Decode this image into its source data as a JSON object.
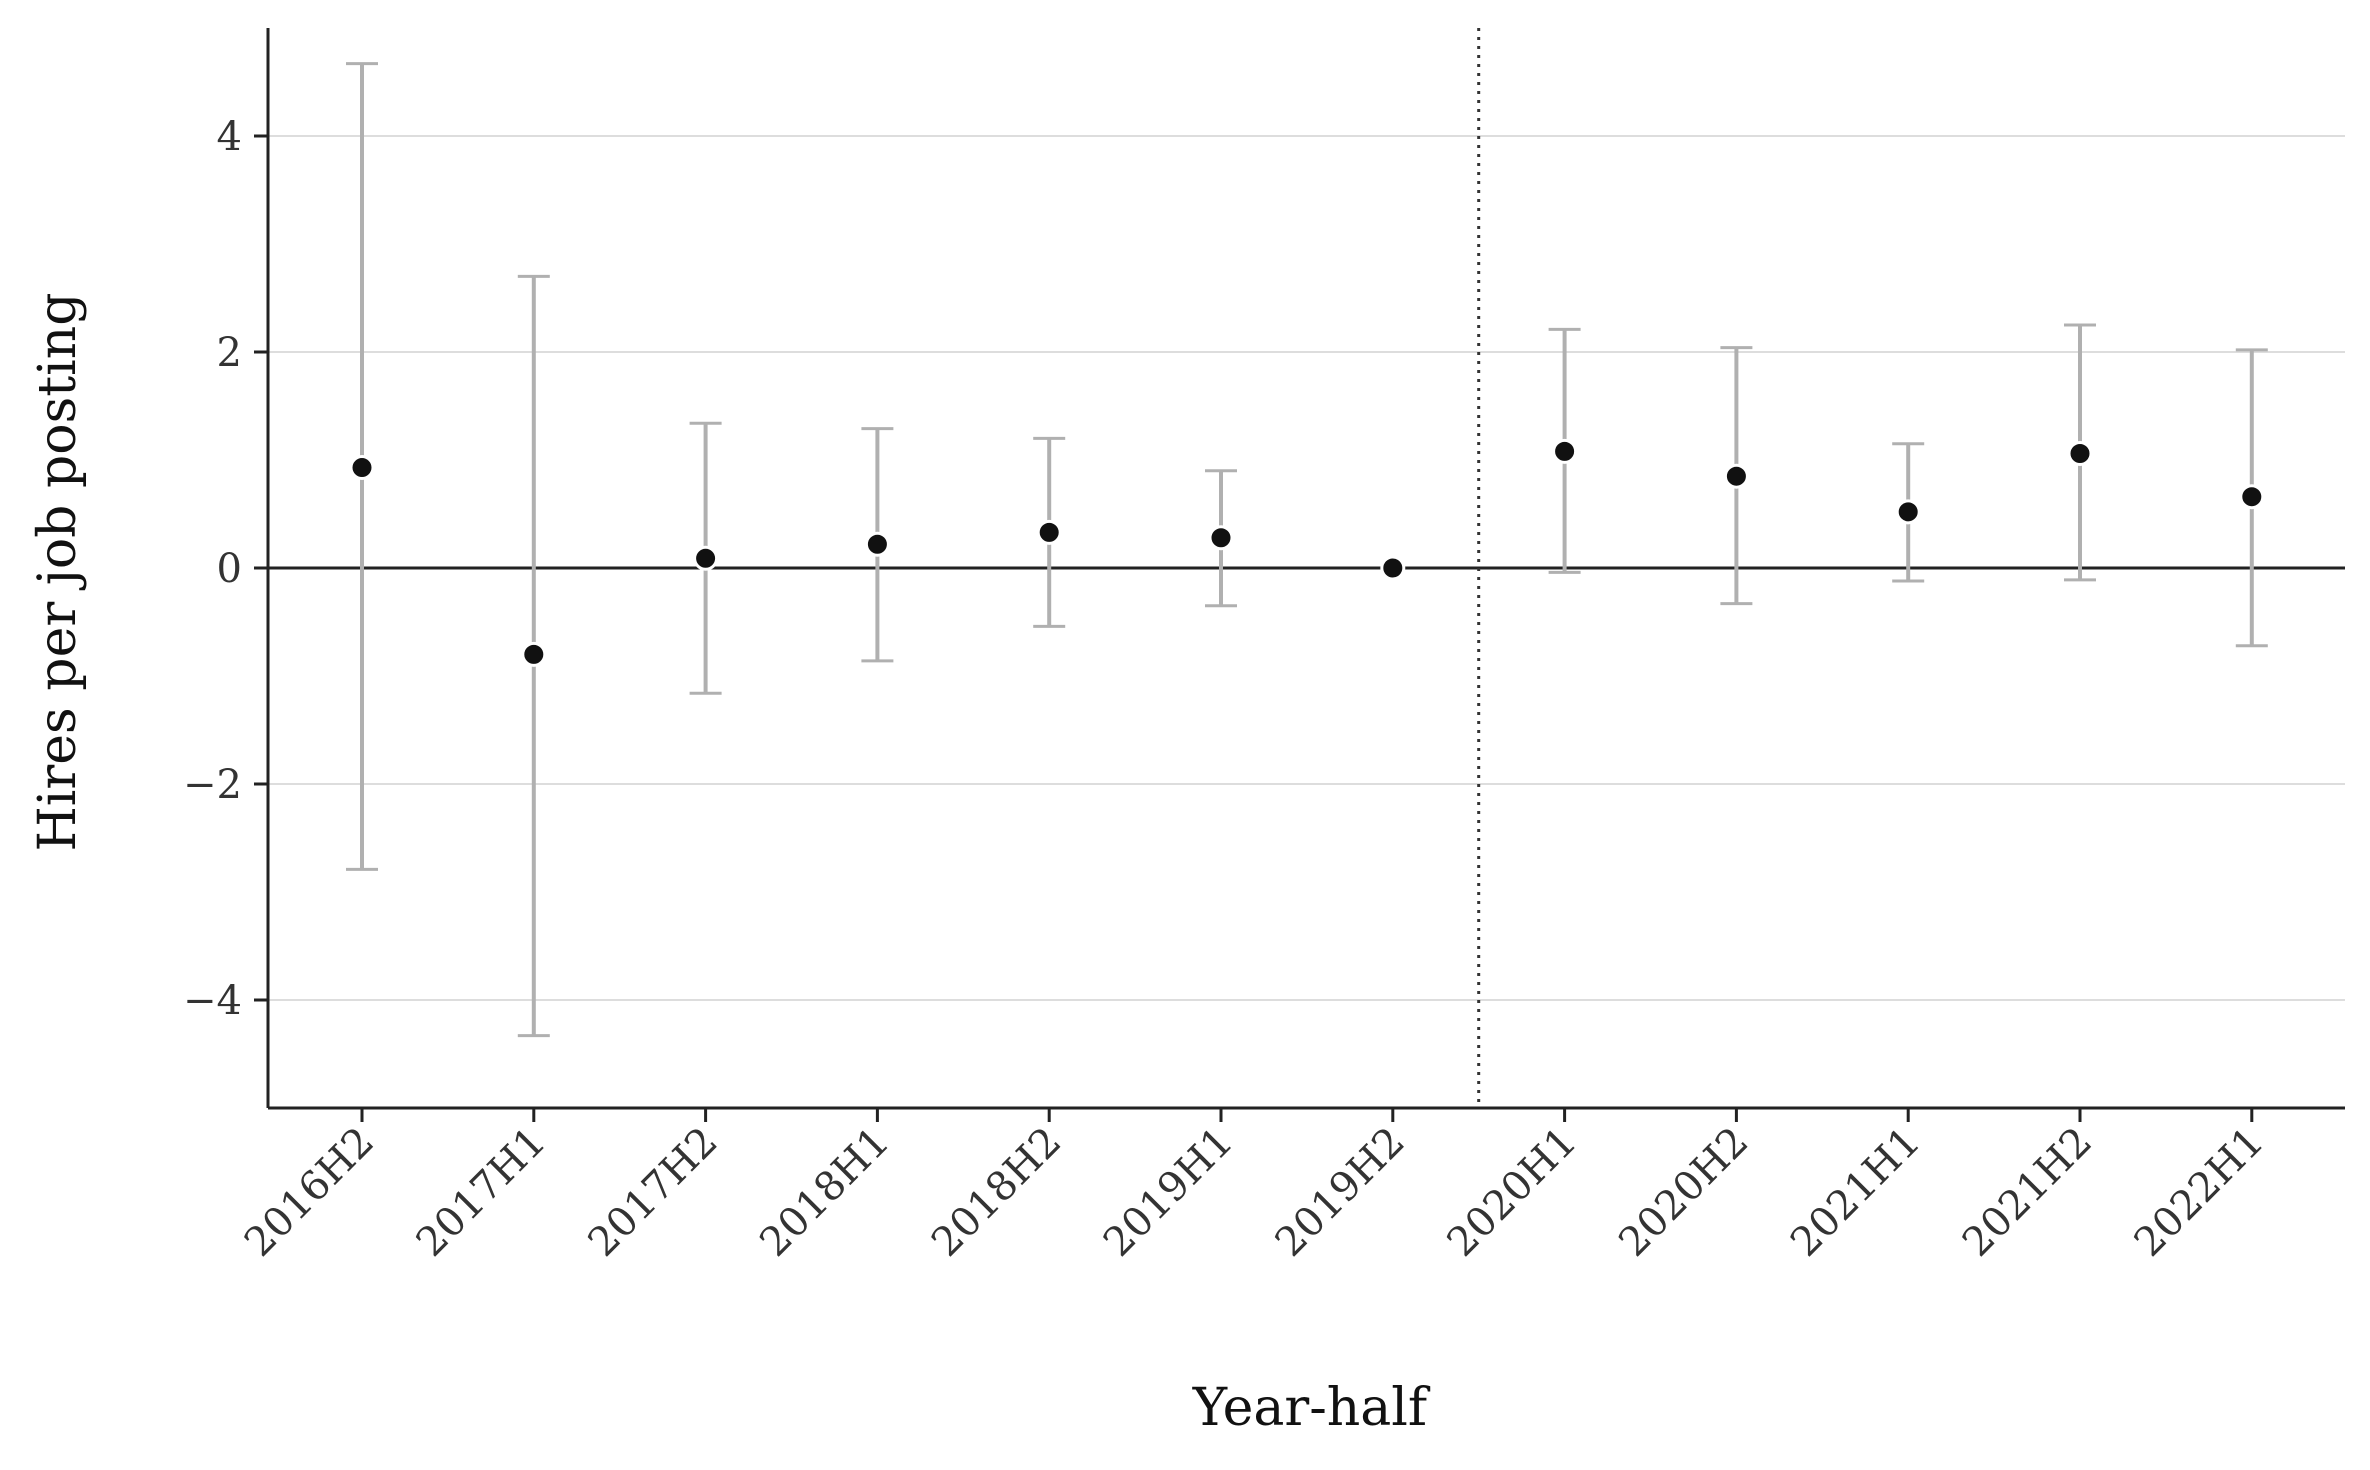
{
  "chart_data": {
    "type": "scatter",
    "subtype": "coefficient plot with confidence intervals",
    "title": "",
    "xlabel": "Year-half",
    "ylabel": "Hires per job posting",
    "categories": [
      "2016H2",
      "2017H1",
      "2017H2",
      "2018H1",
      "2018H2",
      "2019H1",
      "2019H2",
      "2020H1",
      "2020H2",
      "2021H1",
      "2021H2",
      "2022H1"
    ],
    "series": [
      {
        "values": [
          0.93,
          -0.8,
          0.09,
          0.22,
          0.33,
          0.28,
          0.0,
          1.08,
          0.85,
          0.52,
          1.06,
          0.66
        ],
        "ci_lower": [
          -2.79,
          -4.33,
          -1.16,
          -0.86,
          -0.54,
          -0.35,
          0.0,
          -0.04,
          -0.33,
          -0.12,
          -0.11,
          -0.72
        ],
        "ci_upper": [
          4.67,
          2.7,
          1.34,
          1.29,
          1.2,
          0.9,
          0.0,
          2.21,
          2.04,
          1.15,
          2.25,
          2.02
        ]
      }
    ],
    "ylim": [
      -5.0,
      5.0
    ],
    "yticks": [
      -4,
      -2,
      0,
      2,
      4
    ],
    "ytick_labels": [
      "−4",
      "−2",
      "0",
      "2",
      "4"
    ],
    "reference_line_y": 0,
    "vertical_divider_between": [
      "2019H2",
      "2020H1"
    ],
    "grid": "horizontal",
    "colors": {
      "point": "#111111",
      "point_edge": "#ffffff",
      "error_bar": "#b0b0b0",
      "grid": "#dddddd",
      "axis": "#222222",
      "zero_line": "#222222",
      "divider": "#333333"
    }
  }
}
